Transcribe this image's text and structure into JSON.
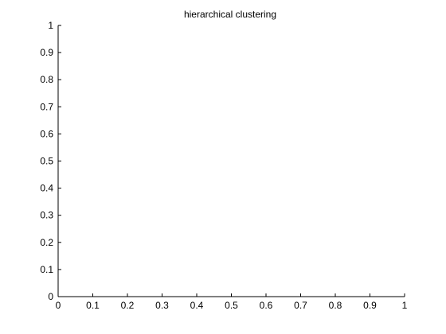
{
  "chart_data": {
    "type": "scatter",
    "title": "hierarchical clustering",
    "xlabel": "",
    "ylabel": "",
    "xlim": [
      0,
      1
    ],
    "ylim": [
      0,
      1
    ],
    "x_ticks": [
      0,
      0.1,
      0.2,
      0.3,
      0.4,
      0.5,
      0.6,
      0.7,
      0.8,
      0.9,
      1
    ],
    "y_ticks": [
      0,
      0.1,
      0.2,
      0.3,
      0.4,
      0.5,
      0.6,
      0.7,
      0.8,
      0.9,
      1
    ],
    "x_tick_labels": [
      "0",
      "0.1",
      "0.2",
      "0.3",
      "0.4",
      "0.5",
      "0.6",
      "0.7",
      "0.8",
      "0.9",
      "1"
    ],
    "y_tick_labels": [
      "0",
      "0.1",
      "0.2",
      "0.3",
      "0.4",
      "0.5",
      "0.6",
      "0.7",
      "0.8",
      "0.9",
      "1"
    ],
    "series": [],
    "grid": false,
    "axis_box": "left-bottom",
    "colors": {
      "axis": "#000000",
      "background": "#ffffff"
    }
  }
}
